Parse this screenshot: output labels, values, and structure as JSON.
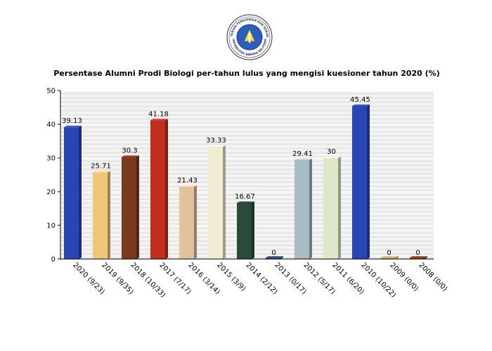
{
  "logo": {
    "text_top": "KEMENTERIAN PENDIDIKAN DAN KEBUDAYAAN",
    "text_bottom": "UNIVERSITAS BANGKA BELITUNG"
  },
  "colors": {
    "background": "#ffffff",
    "plot_stripe_a": "#f4f4f4",
    "plot_stripe_b": "#e8e8e8",
    "axis": "#000000",
    "grid": "#ffffff"
  },
  "chart_data": {
    "type": "bar",
    "title": "Persentase Alumni Prodi Biologi per-tahun lulus yang mengisi kuesioner tahun 2020 (%)",
    "xlabel": "",
    "ylabel": "",
    "ylim": [
      0,
      50
    ],
    "yticks": [
      0,
      10,
      20,
      30,
      40,
      50
    ],
    "grid": true,
    "categories": [
      "2020 (9/23)",
      "2019 (9/35)",
      "2018 (10/33)",
      "2017 (7/17)",
      "2016 (3/14)",
      "2015 (3/9)",
      "2014 (2/12)",
      "2013 (0/17)",
      "2012 (5/17)",
      "2011 (6/20)",
      "2010 (10/22)",
      "2009 (0/0)",
      "2008 (0/0)"
    ],
    "values": [
      39.13,
      25.71,
      30.3,
      41.18,
      21.43,
      33.33,
      16.67,
      0,
      29.41,
      30,
      45.45,
      0,
      0
    ],
    "value_labels": [
      "39.13",
      "25.71",
      "30.3",
      "41.18",
      "21.43",
      "33.33",
      "16.67",
      "0",
      "29.41",
      "30",
      "45.45",
      "0",
      "0"
    ],
    "bar_colors": [
      "#2a45b4",
      "#f2c67a",
      "#7a3a1e",
      "#c22e1e",
      "#e0c29c",
      "#f0ecd2",
      "#2a4a3a",
      "#2a4a7a",
      "#a8bcc6",
      "#dde8c8",
      "#2a45b4",
      "#c8a060",
      "#8a3a1a"
    ]
  }
}
